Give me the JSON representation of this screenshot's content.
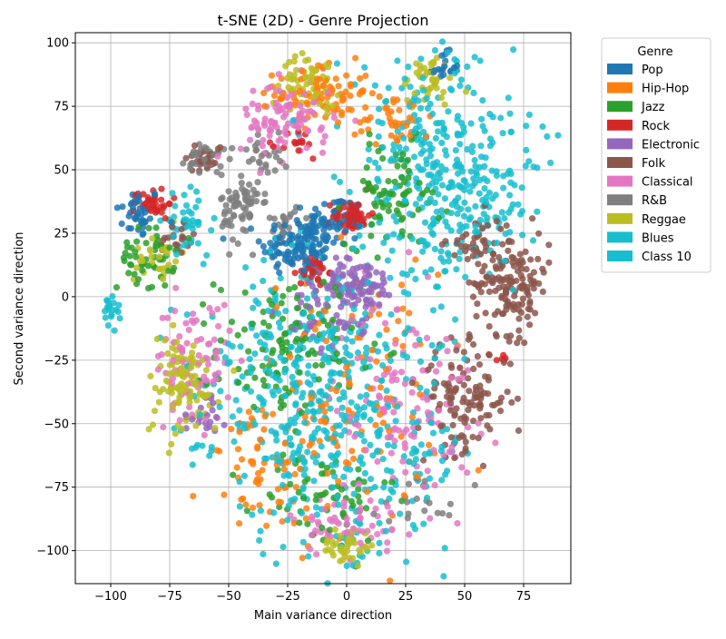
{
  "chart_data": {
    "type": "scatter",
    "title": "t-SNE (2D) - Genre Projection",
    "xlabel": "Main variance direction",
    "ylabel": "Second variance direction",
    "xlim": [
      -115,
      95
    ],
    "ylim": [
      -113,
      104
    ],
    "xticks": [
      -100,
      -75,
      -50,
      -25,
      0,
      25,
      50,
      75
    ],
    "yticks": [
      -100,
      -75,
      -50,
      -25,
      0,
      25,
      50,
      75,
      100
    ],
    "grid": true,
    "legend": {
      "title": "Genre",
      "placement": "outside-top-right"
    },
    "series": [
      {
        "name": "Pop",
        "color": "#1f77b4",
        "clusters": [
          [
            -88,
            33,
            5,
            5,
            40
          ],
          [
            -20,
            20,
            8,
            6,
            120
          ],
          [
            -5,
            30,
            6,
            5,
            60
          ],
          [
            40,
            90,
            4,
            3,
            20
          ]
        ]
      },
      {
        "name": "Hip-Hop",
        "color": "#ff7f0e",
        "clusters": [
          [
            -10,
            80,
            10,
            6,
            80
          ],
          [
            0,
            -40,
            20,
            25,
            120
          ],
          [
            -30,
            -70,
            15,
            12,
            60
          ],
          [
            20,
            70,
            8,
            6,
            40
          ]
        ]
      },
      {
        "name": "Jazz",
        "color": "#2ca02c",
        "clusters": [
          [
            -85,
            15,
            6,
            6,
            50
          ],
          [
            -25,
            -20,
            15,
            15,
            120
          ],
          [
            20,
            40,
            10,
            10,
            80
          ],
          [
            -10,
            -80,
            15,
            10,
            60
          ]
        ]
      },
      {
        "name": "Rock",
        "color": "#d62728",
        "clusters": [
          [
            -82,
            37,
            4,
            3,
            40
          ],
          [
            2,
            32,
            4,
            3,
            60
          ],
          [
            -14,
            10,
            3,
            3,
            25
          ],
          [
            -20,
            60,
            4,
            3,
            15
          ],
          [
            65,
            -25,
            2,
            2,
            6
          ]
        ]
      },
      {
        "name": "Electronic",
        "color": "#9467bd",
        "clusters": [
          [
            5,
            5,
            8,
            5,
            80
          ],
          [
            -5,
            -5,
            10,
            8,
            60
          ],
          [
            -60,
            -45,
            5,
            5,
            20
          ]
        ]
      },
      {
        "name": "Folk",
        "color": "#8c564b",
        "clusters": [
          [
            70,
            5,
            8,
            10,
            140
          ],
          [
            50,
            -40,
            10,
            10,
            120
          ],
          [
            -72,
            22,
            4,
            4,
            20
          ],
          [
            -60,
            55,
            4,
            3,
            25
          ],
          [
            55,
            20,
            6,
            6,
            40
          ]
        ]
      },
      {
        "name": "Classical",
        "color": "#e377c2",
        "clusters": [
          [
            -25,
            70,
            10,
            8,
            100
          ],
          [
            -65,
            -25,
            8,
            12,
            80
          ],
          [
            25,
            -40,
            15,
            20,
            120
          ],
          [
            0,
            -90,
            12,
            6,
            60
          ]
        ]
      },
      {
        "name": "R&B",
        "color": "#7f7f7f",
        "clusters": [
          [
            -45,
            35,
            4,
            7,
            70
          ],
          [
            -60,
            55,
            4,
            3,
            35
          ],
          [
            -35,
            55,
            4,
            5,
            25
          ],
          [
            -25,
            30,
            4,
            3,
            20
          ],
          [
            30,
            -80,
            10,
            5,
            20
          ]
        ]
      },
      {
        "name": "Reggae",
        "color": "#bcbd22",
        "clusters": [
          [
            -70,
            -35,
            8,
            10,
            100
          ],
          [
            -15,
            85,
            6,
            5,
            60
          ],
          [
            0,
            -98,
            5,
            4,
            40
          ],
          [
            35,
            85,
            6,
            5,
            40
          ],
          [
            -80,
            15,
            5,
            5,
            30
          ]
        ]
      },
      {
        "name": "Blues",
        "color": "#17becf",
        "clusters": [
          [
            35,
            60,
            18,
            20,
            200
          ],
          [
            -10,
            -40,
            25,
            30,
            220
          ],
          [
            60,
            40,
            12,
            12,
            80
          ],
          [
            -68,
            30,
            5,
            5,
            40
          ]
        ]
      },
      {
        "name": "Class 10",
        "color": "#17becf",
        "clusters": [
          [
            10,
            -60,
            20,
            25,
            180
          ],
          [
            -30,
            -30,
            15,
            20,
            120
          ],
          [
            40,
            30,
            15,
            15,
            100
          ],
          [
            -100,
            -5,
            2,
            3,
            20
          ],
          [
            -62,
            -60,
            2,
            2,
            6
          ]
        ]
      }
    ]
  }
}
